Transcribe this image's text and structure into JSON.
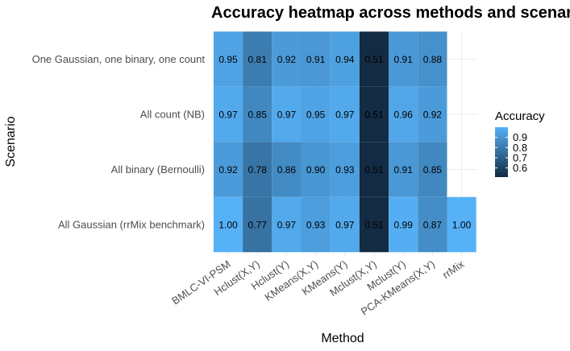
{
  "chart_data": {
    "type": "heatmap",
    "title": "Accuracy heatmap across methods and scenarios",
    "xlabel": "Method",
    "ylabel": "Scenario",
    "x_categories": [
      "BMLC-VI-PSM",
      "Hclust(X,Y)",
      "Hclust(Y)",
      "KMeans(X,Y)",
      "KMeans(Y)",
      "Mclust(X,Y)",
      "Mclust(Y)",
      "PCA-KMeans(X,Y)",
      "rrMix"
    ],
    "y_categories": [
      "All Gaussian (rrMix benchmark)",
      "All binary (Bernoulli)",
      "All count (NB)",
      "One Gaussian, one binary, one count"
    ],
    "cells": [
      {
        "x": "BMLC-VI-PSM",
        "y": "One Gaussian, one binary, one count",
        "value": 0.95,
        "label": "0.95"
      },
      {
        "x": "Hclust(X,Y)",
        "y": "One Gaussian, one binary, one count",
        "value": 0.81,
        "label": "0.81"
      },
      {
        "x": "Hclust(Y)",
        "y": "One Gaussian, one binary, one count",
        "value": 0.92,
        "label": "0.92"
      },
      {
        "x": "KMeans(X,Y)",
        "y": "One Gaussian, one binary, one count",
        "value": 0.91,
        "label": "0.91"
      },
      {
        "x": "KMeans(Y)",
        "y": "One Gaussian, one binary, one count",
        "value": 0.94,
        "label": "0.94"
      },
      {
        "x": "Mclust(X,Y)",
        "y": "One Gaussian, one binary, one count",
        "value": 0.51,
        "label": "0.51"
      },
      {
        "x": "Mclust(Y)",
        "y": "One Gaussian, one binary, one count",
        "value": 0.91,
        "label": "0.91"
      },
      {
        "x": "PCA-KMeans(X,Y)",
        "y": "One Gaussian, one binary, one count",
        "value": 0.88,
        "label": "0.88"
      },
      {
        "x": "BMLC-VI-PSM",
        "y": "All count (NB)",
        "value": 0.97,
        "label": "0.97"
      },
      {
        "x": "Hclust(X,Y)",
        "y": "All count (NB)",
        "value": 0.85,
        "label": "0.85"
      },
      {
        "x": "Hclust(Y)",
        "y": "All count (NB)",
        "value": 0.97,
        "label": "0.97"
      },
      {
        "x": "KMeans(X,Y)",
        "y": "All count (NB)",
        "value": 0.95,
        "label": "0.95"
      },
      {
        "x": "KMeans(Y)",
        "y": "All count (NB)",
        "value": 0.97,
        "label": "0.97"
      },
      {
        "x": "Mclust(X,Y)",
        "y": "All count (NB)",
        "value": 0.51,
        "label": "0.51"
      },
      {
        "x": "Mclust(Y)",
        "y": "All count (NB)",
        "value": 0.96,
        "label": "0.96"
      },
      {
        "x": "PCA-KMeans(X,Y)",
        "y": "All count (NB)",
        "value": 0.92,
        "label": "0.92"
      },
      {
        "x": "BMLC-VI-PSM",
        "y": "All binary (Bernoulli)",
        "value": 0.92,
        "label": "0.92"
      },
      {
        "x": "Hclust(X,Y)",
        "y": "All binary (Bernoulli)",
        "value": 0.78,
        "label": "0.78"
      },
      {
        "x": "Hclust(Y)",
        "y": "All binary (Bernoulli)",
        "value": 0.86,
        "label": "0.86"
      },
      {
        "x": "KMeans(X,Y)",
        "y": "All binary (Bernoulli)",
        "value": 0.9,
        "label": "0.90"
      },
      {
        "x": "KMeans(Y)",
        "y": "All binary (Bernoulli)",
        "value": 0.93,
        "label": "0.93"
      },
      {
        "x": "Mclust(X,Y)",
        "y": "All binary (Bernoulli)",
        "value": 0.51,
        "label": "0.51"
      },
      {
        "x": "Mclust(Y)",
        "y": "All binary (Bernoulli)",
        "value": 0.91,
        "label": "0.91"
      },
      {
        "x": "PCA-KMeans(X,Y)",
        "y": "All binary (Bernoulli)",
        "value": 0.85,
        "label": "0.85"
      },
      {
        "x": "BMLC-VI-PSM",
        "y": "All Gaussian (rrMix benchmark)",
        "value": 1.0,
        "label": "1.00"
      },
      {
        "x": "Hclust(X,Y)",
        "y": "All Gaussian (rrMix benchmark)",
        "value": 0.77,
        "label": "0.77"
      },
      {
        "x": "Hclust(Y)",
        "y": "All Gaussian (rrMix benchmark)",
        "value": 0.97,
        "label": "0.97"
      },
      {
        "x": "KMeans(X,Y)",
        "y": "All Gaussian (rrMix benchmark)",
        "value": 0.93,
        "label": "0.93"
      },
      {
        "x": "KMeans(Y)",
        "y": "All Gaussian (rrMix benchmark)",
        "value": 0.97,
        "label": "0.97"
      },
      {
        "x": "Mclust(X,Y)",
        "y": "All Gaussian (rrMix benchmark)",
        "value": 0.51,
        "label": "0.51"
      },
      {
        "x": "Mclust(Y)",
        "y": "All Gaussian (rrMix benchmark)",
        "value": 0.99,
        "label": "0.99"
      },
      {
        "x": "PCA-KMeans(X,Y)",
        "y": "All Gaussian (rrMix benchmark)",
        "value": 0.87,
        "label": "0.87"
      },
      {
        "x": "rrMix",
        "y": "All Gaussian (rrMix benchmark)",
        "value": 1.0,
        "label": "1.00"
      }
    ],
    "color_scale": {
      "low_color": "#132B43",
      "high_color": "#56B1F7",
      "value_range": [
        0.51,
        1.0
      ]
    },
    "legend": {
      "title": "Accuracy",
      "ticks": [
        {
          "value": 0.6,
          "label": "0.6"
        },
        {
          "value": 0.7,
          "label": "0.7"
        },
        {
          "value": 0.8,
          "label": "0.8"
        },
        {
          "value": 0.9,
          "label": "0.9"
        }
      ],
      "position": "right"
    },
    "grid": true
  }
}
